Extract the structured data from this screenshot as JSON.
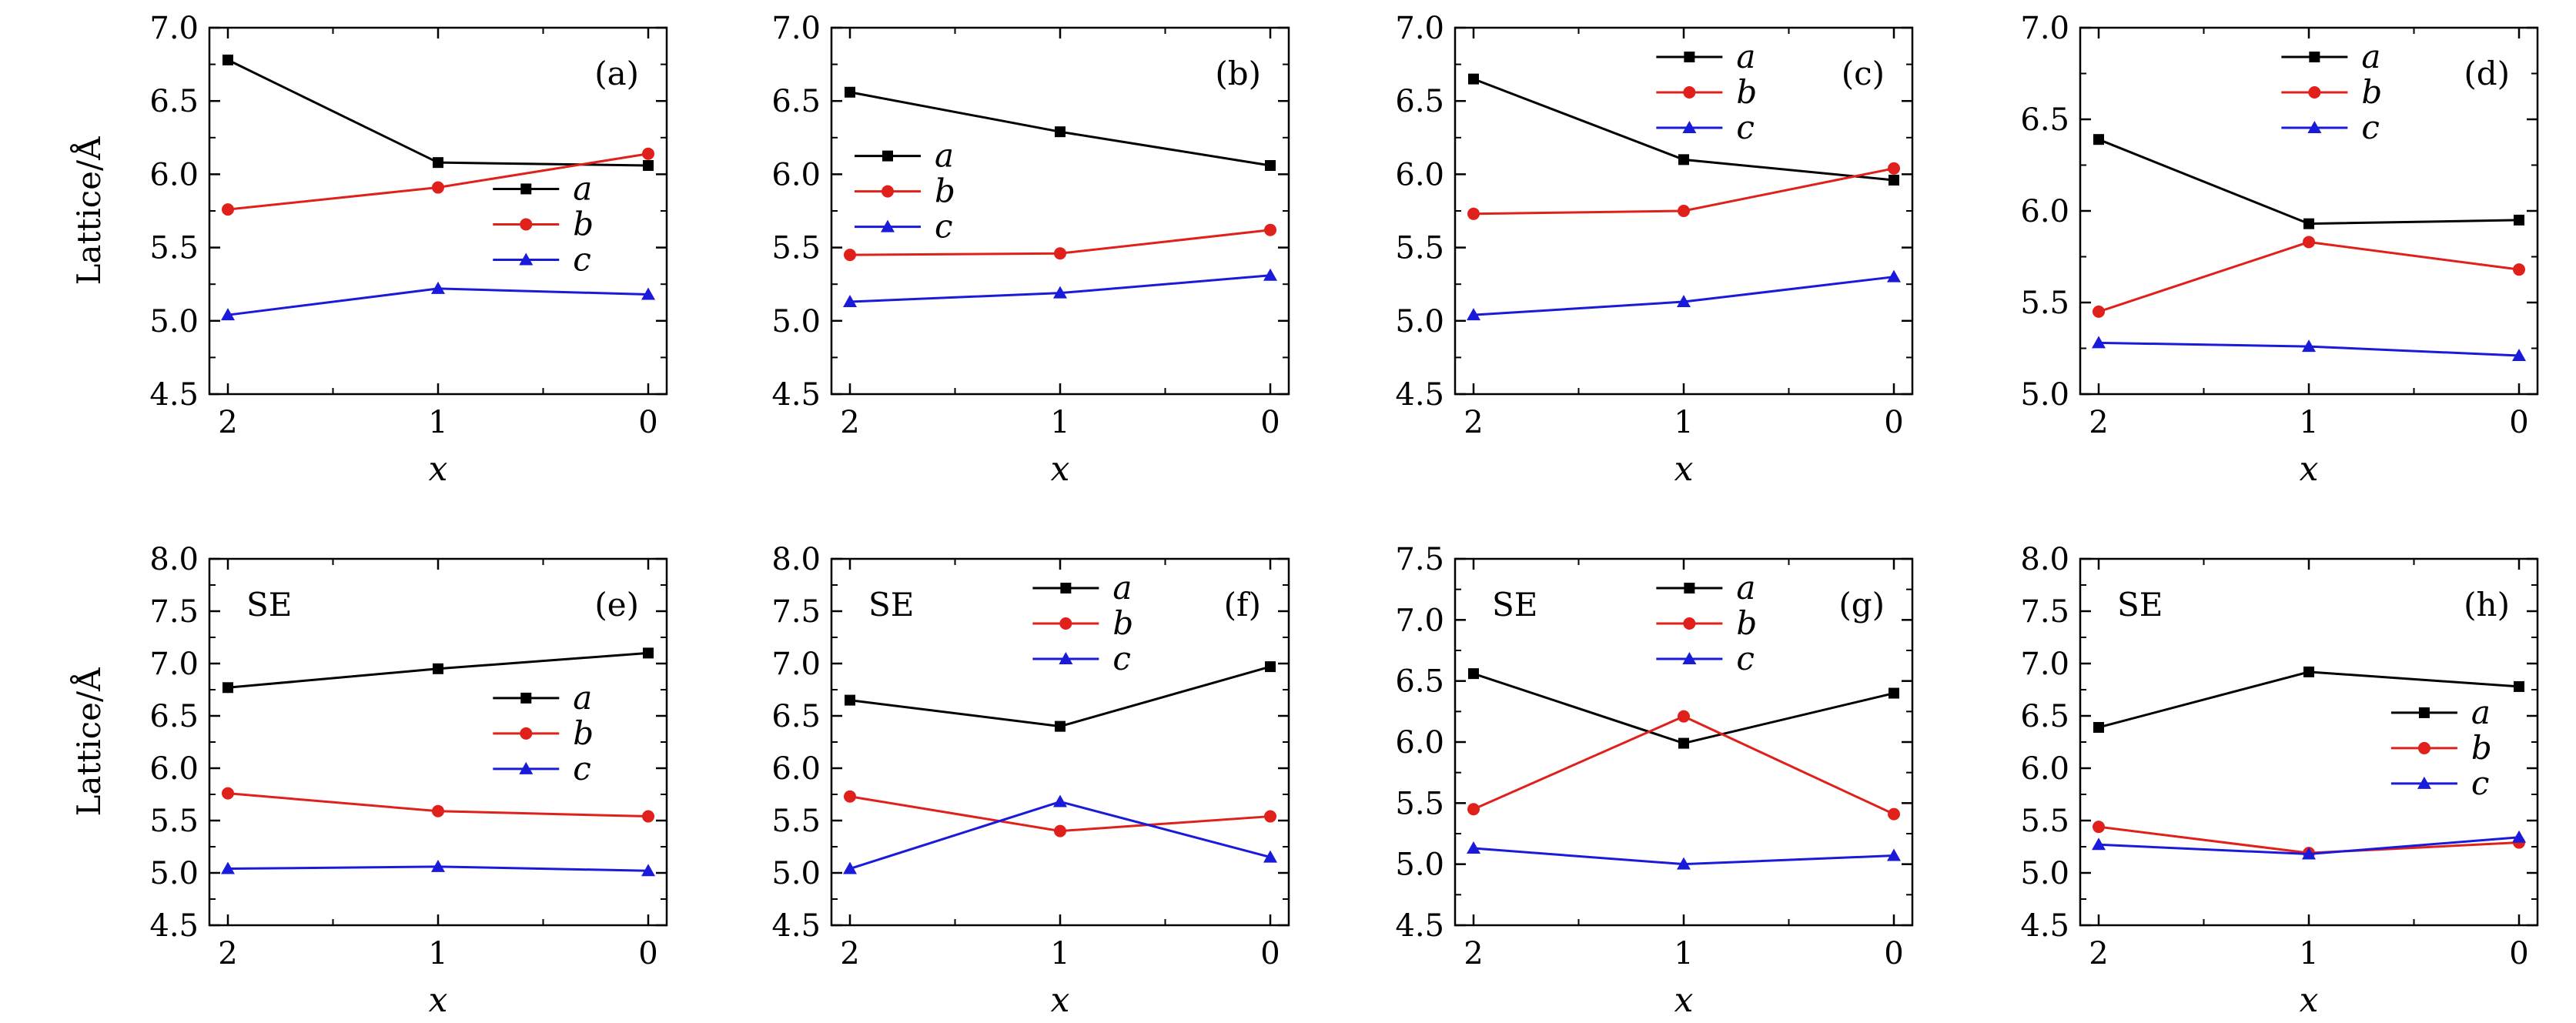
{
  "figure": {
    "ylabel": "Lattice/Å",
    "xlabel": "x"
  },
  "chart_data": [
    {
      "type": "line",
      "panel": "(a)",
      "note": "",
      "categories": [
        "2",
        "1",
        "0"
      ],
      "ylim": [
        4.5,
        7.0
      ],
      "yticks": [
        "4.5",
        "5.0",
        "5.5",
        "6.0",
        "6.5",
        "7.0"
      ],
      "xlabel": "x",
      "ylabel": "Lattice/Å",
      "legend": "center-right",
      "series": [
        {
          "name": "a",
          "color": "#000000",
          "marker": "square",
          "values": [
            6.78,
            6.08,
            6.06
          ]
        },
        {
          "name": "b",
          "color": "#e0201b",
          "marker": "circle",
          "values": [
            5.76,
            5.91,
            6.14
          ]
        },
        {
          "name": "c",
          "color": "#1a1adb",
          "marker": "triangle",
          "values": [
            5.04,
            5.22,
            5.18
          ]
        }
      ]
    },
    {
      "type": "line",
      "panel": "(b)",
      "note": "",
      "categories": [
        "2",
        "1",
        "0"
      ],
      "ylim": [
        4.5,
        7.0
      ],
      "yticks": [
        "4.5",
        "5.0",
        "5.5",
        "6.0",
        "6.5",
        "7.0"
      ],
      "xlabel": "x",
      "ylabel": "",
      "legend": "center-left",
      "series": [
        {
          "name": "a",
          "color": "#000000",
          "marker": "square",
          "values": [
            6.56,
            6.29,
            6.06
          ]
        },
        {
          "name": "b",
          "color": "#e0201b",
          "marker": "circle",
          "values": [
            5.45,
            5.46,
            5.62
          ]
        },
        {
          "name": "c",
          "color": "#1a1adb",
          "marker": "triangle",
          "values": [
            5.13,
            5.19,
            5.31
          ]
        }
      ]
    },
    {
      "type": "line",
      "panel": "(c)",
      "note": "",
      "categories": [
        "2",
        "1",
        "0"
      ],
      "ylim": [
        4.5,
        7.0
      ],
      "yticks": [
        "4.5",
        "5.0",
        "5.5",
        "6.0",
        "6.5",
        "7.0"
      ],
      "xlabel": "x",
      "ylabel": "",
      "legend": "top-center",
      "series": [
        {
          "name": "a",
          "color": "#000000",
          "marker": "square",
          "values": [
            6.65,
            6.1,
            5.96
          ]
        },
        {
          "name": "b",
          "color": "#e0201b",
          "marker": "circle",
          "values": [
            5.73,
            5.75,
            6.04
          ]
        },
        {
          "name": "c",
          "color": "#1a1adb",
          "marker": "triangle",
          "values": [
            5.04,
            5.13,
            5.3
          ]
        }
      ]
    },
    {
      "type": "line",
      "panel": "(d)",
      "note": "",
      "categories": [
        "2",
        "1",
        "0"
      ],
      "ylim": [
        5.0,
        7.0
      ],
      "yticks": [
        "5.0",
        "5.5",
        "6.0",
        "6.5",
        "7.0"
      ],
      "xlabel": "x",
      "ylabel": "",
      "legend": "top-center",
      "series": [
        {
          "name": "a",
          "color": "#000000",
          "marker": "square",
          "values": [
            6.39,
            5.93,
            5.95
          ]
        },
        {
          "name": "b",
          "color": "#e0201b",
          "marker": "circle",
          "values": [
            5.45,
            5.83,
            5.68
          ]
        },
        {
          "name": "c",
          "color": "#1a1adb",
          "marker": "triangle",
          "values": [
            5.28,
            5.26,
            5.21
          ]
        }
      ]
    },
    {
      "type": "line",
      "panel": "(e)",
      "note": "SE",
      "categories": [
        "2",
        "1",
        "0"
      ],
      "ylim": [
        4.5,
        8.0
      ],
      "yticks": [
        "4.5",
        "5.0",
        "5.5",
        "6.0",
        "6.5",
        "7.0",
        "7.5",
        "8.0"
      ],
      "xlabel": "x",
      "ylabel": "Lattice/Å",
      "legend": "center-right",
      "series": [
        {
          "name": "a",
          "color": "#000000",
          "marker": "square",
          "values": [
            6.77,
            6.95,
            7.1
          ]
        },
        {
          "name": "b",
          "color": "#e0201b",
          "marker": "circle",
          "values": [
            5.76,
            5.59,
            5.54
          ]
        },
        {
          "name": "c",
          "color": "#1a1adb",
          "marker": "triangle",
          "values": [
            5.04,
            5.06,
            5.02
          ]
        }
      ]
    },
    {
      "type": "line",
      "panel": "(f)",
      "note": "SE",
      "categories": [
        "2",
        "1",
        "0"
      ],
      "ylim": [
        4.5,
        8.0
      ],
      "yticks": [
        "4.5",
        "5.0",
        "5.5",
        "6.0",
        "6.5",
        "7.0",
        "7.5",
        "8.0"
      ],
      "xlabel": "x",
      "ylabel": "",
      "legend": "top-center",
      "series": [
        {
          "name": "a",
          "color": "#000000",
          "marker": "square",
          "values": [
            6.65,
            6.4,
            6.97
          ]
        },
        {
          "name": "b",
          "color": "#e0201b",
          "marker": "circle",
          "values": [
            5.73,
            5.4,
            5.54
          ]
        },
        {
          "name": "c",
          "color": "#1a1adb",
          "marker": "triangle",
          "values": [
            5.04,
            5.68,
            5.15
          ]
        }
      ]
    },
    {
      "type": "line",
      "panel": "(g)",
      "note": "SE",
      "categories": [
        "2",
        "1",
        "0"
      ],
      "ylim": [
        4.5,
        7.5
      ],
      "yticks": [
        "4.5",
        "5.0",
        "5.5",
        "6.0",
        "6.5",
        "7.0",
        "7.5"
      ],
      "xlabel": "x",
      "ylabel": "",
      "legend": "top-center",
      "series": [
        {
          "name": "a",
          "color": "#000000",
          "marker": "square",
          "values": [
            6.56,
            5.99,
            6.4
          ]
        },
        {
          "name": "b",
          "color": "#e0201b",
          "marker": "circle",
          "values": [
            5.45,
            6.21,
            5.41
          ]
        },
        {
          "name": "c",
          "color": "#1a1adb",
          "marker": "triangle",
          "values": [
            5.13,
            5.0,
            5.07
          ]
        }
      ]
    },
    {
      "type": "line",
      "panel": "(h)",
      "note": "SE",
      "categories": [
        "2",
        "1",
        "0"
      ],
      "ylim": [
        4.5,
        8.0
      ],
      "yticks": [
        "4.5",
        "5.0",
        "5.5",
        "6.0",
        "6.5",
        "7.0",
        "7.5",
        "8.0"
      ],
      "xlabel": "x",
      "ylabel": "",
      "legend": "center-right",
      "series": [
        {
          "name": "a",
          "color": "#000000",
          "marker": "square",
          "values": [
            6.39,
            6.92,
            6.78
          ]
        },
        {
          "name": "b",
          "color": "#e0201b",
          "marker": "circle",
          "values": [
            5.44,
            5.19,
            5.29
          ]
        },
        {
          "name": "c",
          "color": "#1a1adb",
          "marker": "triangle",
          "values": [
            5.27,
            5.18,
            5.34
          ]
        }
      ]
    }
  ]
}
